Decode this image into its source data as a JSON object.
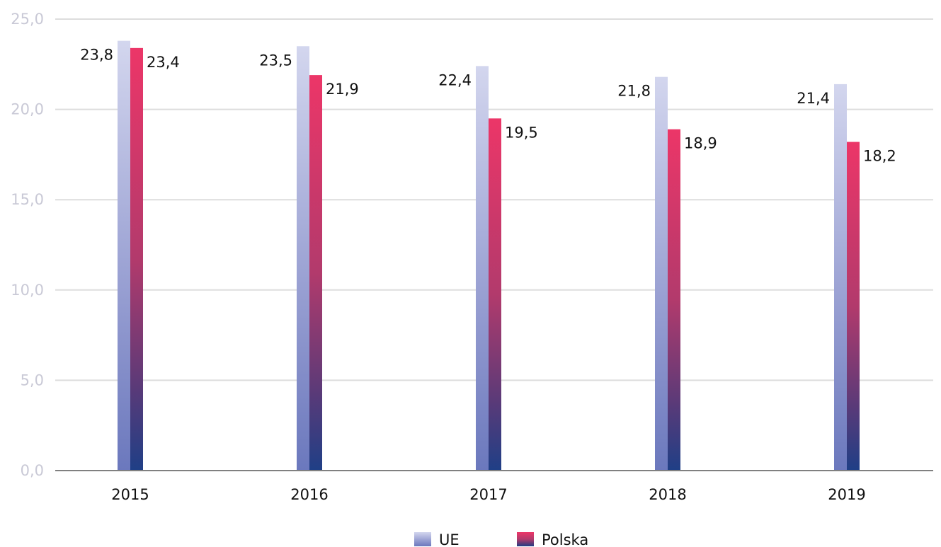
{
  "chart_data": {
    "type": "bar",
    "categories": [
      "2015",
      "2016",
      "2017",
      "2018",
      "2019"
    ],
    "series": [
      {
        "name": "UE",
        "values": [
          23.8,
          23.5,
          22.4,
          21.8,
          21.4
        ],
        "value_labels": [
          "23,8",
          "23,5",
          "22,4",
          "21,8",
          "21,4"
        ]
      },
      {
        "name": "Polska",
        "values": [
          23.4,
          21.9,
          19.5,
          18.9,
          18.2
        ],
        "value_labels": [
          "23,4",
          "21,9",
          "19,5",
          "18,9",
          "18,2"
        ]
      }
    ],
    "ylim": [
      0,
      25
    ],
    "y_ticks": [
      0,
      5,
      10,
      15,
      20,
      25
    ],
    "y_tick_labels": [
      "0,0",
      "5,0",
      "10,0",
      "15,0",
      "20,0",
      "25,0"
    ],
    "grid": true,
    "legend_position": "bottom-center",
    "colors": {
      "UE": {
        "top": "#d3d6ee",
        "mid": "#8f98cf",
        "bottom": "#6b78bd"
      },
      "Polska": {
        "top": "#ec3668",
        "mid": "#8a3d73",
        "bottom": "#1f3f86"
      },
      "grid": "#dddddd",
      "axis": "#808080"
    }
  }
}
